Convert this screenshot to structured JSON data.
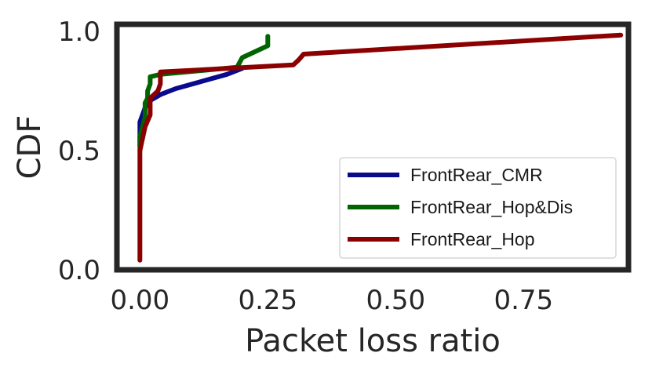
{
  "chart_data": {
    "type": "line",
    "xlabel": "Packet loss ratio",
    "ylabel": "CDF",
    "xlim": [
      -0.045,
      0.955
    ],
    "ylim": [
      0.0,
      1.03
    ],
    "xticks": [
      0.0,
      0.25,
      0.5,
      0.75
    ],
    "xtick_labels": [
      "0.00",
      "0.25",
      "0.50",
      "0.75"
    ],
    "yticks": [
      0.0,
      0.5,
      1.0
    ],
    "ytick_labels": [
      "0.0",
      "0.5",
      "1.0"
    ],
    "grid": false,
    "legend_position": "lower-right",
    "series": [
      {
        "name": "FrontRear_CMR",
        "color": "#0a0a8c",
        "points": [
          [
            0.0,
            0.52
          ],
          [
            0.0,
            0.62
          ],
          [
            0.005,
            0.65
          ],
          [
            0.01,
            0.68
          ],
          [
            0.02,
            0.71
          ],
          [
            0.04,
            0.735
          ],
          [
            0.07,
            0.76
          ],
          [
            0.12,
            0.79
          ],
          [
            0.17,
            0.82
          ],
          [
            0.2,
            0.845
          ]
        ]
      },
      {
        "name": "FrontRear_Hop&Dis",
        "color": "#006400",
        "points": [
          [
            0.0,
            0.5
          ],
          [
            0.0,
            0.56
          ],
          [
            0.005,
            0.6
          ],
          [
            0.01,
            0.64
          ],
          [
            0.01,
            0.7
          ],
          [
            0.015,
            0.72
          ],
          [
            0.015,
            0.75
          ],
          [
            0.02,
            0.78
          ],
          [
            0.02,
            0.81
          ],
          [
            0.04,
            0.82
          ],
          [
            0.19,
            0.85
          ],
          [
            0.2,
            0.89
          ],
          [
            0.23,
            0.92
          ],
          [
            0.25,
            0.94
          ],
          [
            0.25,
            0.98
          ]
        ]
      },
      {
        "name": "FrontRear_Hop",
        "color": "#8b0000",
        "points": [
          [
            0.0,
            0.04
          ],
          [
            0.0,
            0.5
          ],
          [
            0.01,
            0.6
          ],
          [
            0.02,
            0.65
          ],
          [
            0.02,
            0.72
          ],
          [
            0.035,
            0.75
          ],
          [
            0.04,
            0.78
          ],
          [
            0.04,
            0.83
          ],
          [
            0.3,
            0.86
          ],
          [
            0.31,
            0.88
          ],
          [
            0.32,
            0.905
          ],
          [
            0.94,
            0.985
          ]
        ]
      }
    ]
  }
}
